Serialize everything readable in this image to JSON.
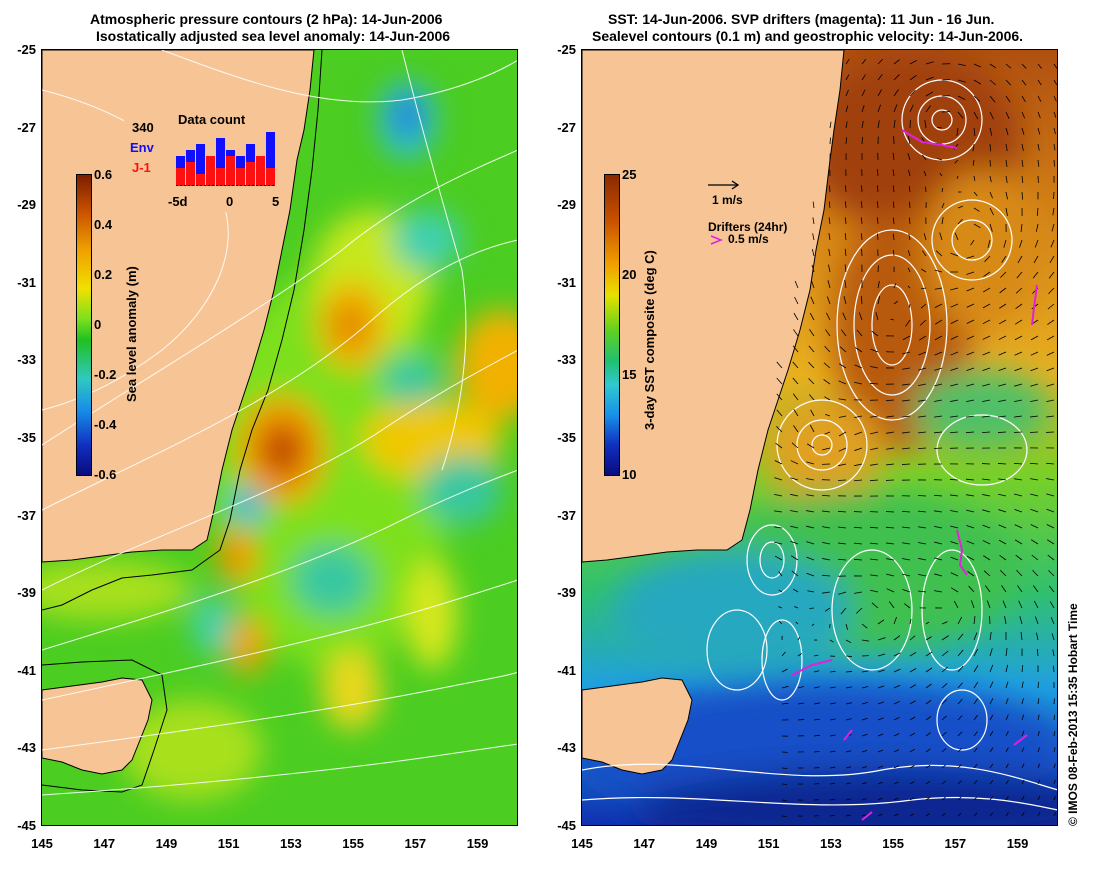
{
  "left_panel": {
    "title_line1": "Atmospheric pressure contours (2 hPa): 14-Jun-2006",
    "title_line2": "Isostatically adjusted sea level anomaly: 14-Jun-2006",
    "colorbar": {
      "title": "Sea level anomaly (m)",
      "ticks": [
        "0.6",
        "0.4",
        "0.2",
        "0",
        "-0.2",
        "-0.4",
        "-0.6"
      ],
      "min": -0.6,
      "max": 0.6
    },
    "inset": {
      "title": "Data count",
      "count": "340",
      "legend_env": "Env",
      "legend_j1": "J-1",
      "env_color": "#1010ff",
      "j1_color": "#ff1010",
      "x_ticks": [
        "-5d",
        "0",
        "5"
      ],
      "env_values": [
        5,
        6,
        7,
        4,
        8,
        6,
        5,
        7,
        4,
        9
      ],
      "j1_values": [
        3,
        4,
        2,
        5,
        3,
        5,
        3,
        4,
        5,
        3
      ]
    }
  },
  "right_panel": {
    "title_line1": "SST: 14-Jun-2006. SVP drifters (magenta): 11 Jun - 16 Jun.",
    "title_line2": "Sealevel contours (0.1 m) and geostrophic velocity: 14-Jun-2006.",
    "colorbar": {
      "title": "3-day SST composite (deg C)",
      "ticks": [
        "25",
        "20",
        "15",
        "10"
      ],
      "min": 10,
      "max": 25
    },
    "velocity_key": "1 m/s",
    "drifters_label": "Drifters (24hr)",
    "drifters_speed": "0.5 m/s"
  },
  "axes": {
    "y_ticks": [
      "-25",
      "-27",
      "-29",
      "-31",
      "-33",
      "-35",
      "-37",
      "-39",
      "-41",
      "-43",
      "-45"
    ],
    "x_ticks": [
      "145",
      "147",
      "149",
      "151",
      "153",
      "155",
      "157",
      "159"
    ],
    "lon_range": [
      145,
      160.3
    ],
    "lat_range": [
      -45,
      -25
    ]
  },
  "credit": "© IMOS 08-Feb-2013 15:35 Hobart Time",
  "colors": {
    "land": "#f7c495",
    "coast": "#000000",
    "contour": "#ffffff"
  }
}
